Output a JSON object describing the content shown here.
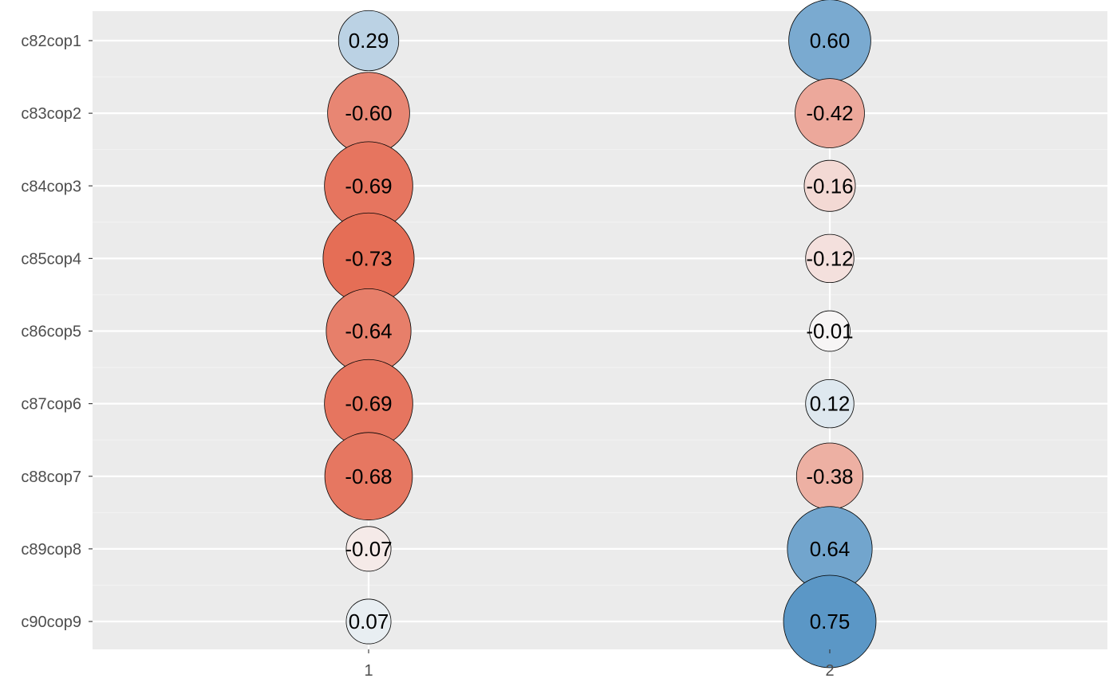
{
  "chart_data": {
    "type": "scatter",
    "subtype": "bubble-matrix",
    "title": "",
    "xlabel": "",
    "ylabel": "",
    "legend": "none",
    "grid": true,
    "x_categories": [
      "1",
      "2"
    ],
    "y_categories": [
      "c82cop1",
      "c83cop2",
      "c84cop3",
      "c85cop4",
      "c86cop5",
      "c87cop6",
      "c88cop7",
      "c89cop8",
      "c90cop9"
    ],
    "series": [
      {
        "x": "1",
        "values": [
          0.29,
          -0.6,
          -0.69,
          -0.73,
          -0.64,
          -0.69,
          -0.68,
          -0.07,
          0.07
        ]
      },
      {
        "x": "2",
        "values": [
          0.6,
          -0.42,
          -0.16,
          -0.12,
          -0.01,
          0.12,
          -0.38,
          0.64,
          0.75
        ]
      }
    ],
    "labels": [
      [
        "0.29",
        "0.60"
      ],
      [
        "-0.60",
        "-0.42"
      ],
      [
        "-0.69",
        "-0.16"
      ],
      [
        "-0.73",
        "-0.12"
      ],
      [
        "-0.64",
        "-0.01"
      ],
      [
        "-0.69",
        "0.12"
      ],
      [
        "-0.68",
        "-0.38"
      ],
      [
        "-0.07",
        "0.64"
      ],
      [
        "0.07",
        "0.75"
      ]
    ],
    "colors": {
      "panel_background": "#EBEBEB",
      "grid_major": "#FFFFFF",
      "grid_minor": "#F2F2F2",
      "negative_extreme": "#E46A52",
      "neutral": "#F7F7F7",
      "positive_extreme": "#5B97C6",
      "outline": "#000000"
    }
  }
}
